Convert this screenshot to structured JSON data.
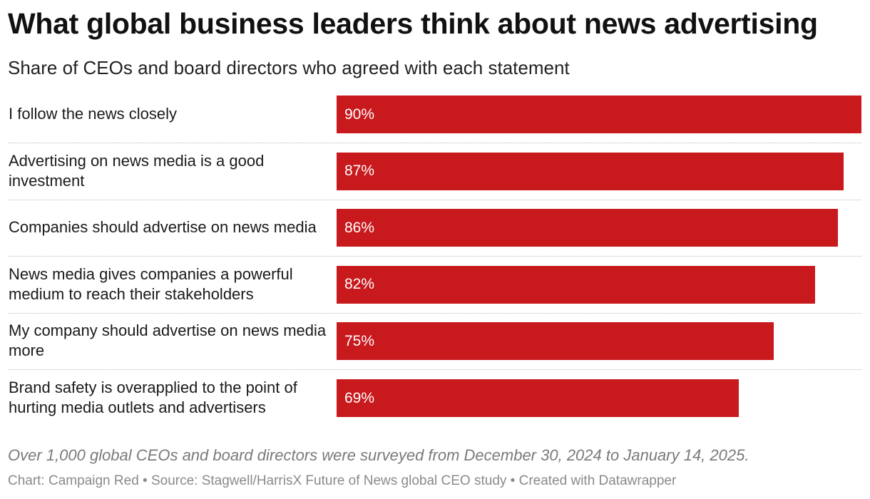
{
  "chart_data": {
    "type": "bar",
    "orientation": "horizontal",
    "title": "What global business leaders think about news advertising",
    "subtitle": "Share of CEOs and board directors who agreed with each statement",
    "categories": [
      "I follow the news closely",
      "Advertising on news media is a good investment",
      "Companies should advertise on news media",
      "News media gives companies a powerful medium to reach their stakeholders",
      "My company should advertise on news media more",
      "Brand safety is overapplied to the point of hurting media outlets and advertisers"
    ],
    "values": [
      90,
      87,
      86,
      82,
      75,
      69
    ],
    "value_labels": [
      "90%",
      "87%",
      "86%",
      "82%",
      "75%",
      "69%"
    ],
    "unit": "%",
    "xlim": [
      0,
      90
    ],
    "grid": false,
    "legend": "none",
    "bar_color": "#c8191d",
    "notes": "Over 1,000 global CEOs and board directors were surveyed from December 30, 2024 to January 14, 2025.",
    "footer": "Chart: Campaign Red • Source: Stagwell/HarrisX Future of News global CEO study • Created with Datawrapper"
  }
}
